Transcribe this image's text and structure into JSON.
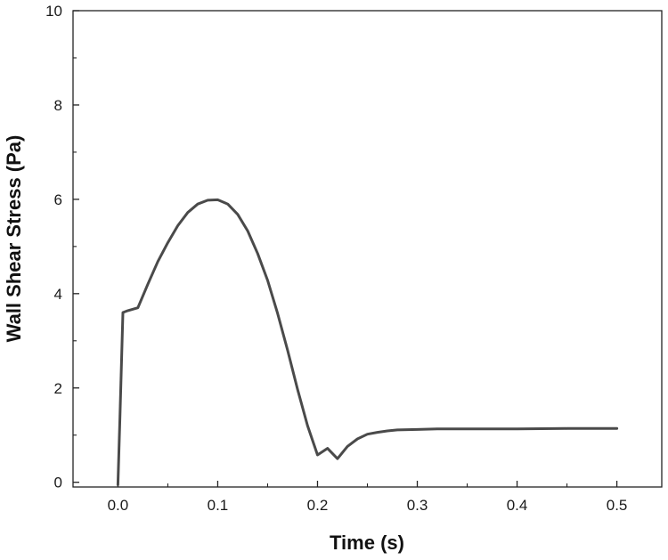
{
  "chart_data": {
    "type": "line",
    "title": "",
    "xlabel": "Time (s)",
    "ylabel": "Wall Shear Stress (Pa)",
    "xlim": [
      -0.045,
      0.545
    ],
    "ylim": [
      -0.1,
      10
    ],
    "xticks": [
      0.0,
      0.1,
      0.2,
      0.3,
      0.4,
      0.5
    ],
    "xtick_labels": [
      "0.0",
      "0.1",
      "0.2",
      "0.3",
      "0.4",
      "0.5"
    ],
    "yticks": [
      0,
      2,
      4,
      6,
      8,
      10
    ],
    "ytick_labels": [
      "0",
      "2",
      "4",
      "6",
      "8",
      "10"
    ],
    "grid": false,
    "legend": "none",
    "line_color": "#4a4a4a",
    "series": [
      {
        "x": [
          0.0,
          0.002,
          0.005,
          0.01,
          0.02,
          0.03,
          0.04,
          0.05,
          0.06,
          0.07,
          0.08,
          0.09,
          0.1,
          0.11,
          0.12,
          0.13,
          0.14,
          0.15,
          0.16,
          0.17,
          0.18,
          0.19,
          0.2,
          0.21,
          0.22,
          0.23,
          0.24,
          0.25,
          0.26,
          0.27,
          0.28,
          0.3,
          0.32,
          0.35,
          0.4,
          0.45,
          0.5
        ],
        "y": [
          -0.05,
          1.4,
          3.6,
          3.64,
          3.7,
          4.2,
          4.68,
          5.08,
          5.44,
          5.72,
          5.9,
          5.98,
          5.99,
          5.9,
          5.68,
          5.33,
          4.85,
          4.28,
          3.58,
          2.8,
          1.97,
          1.2,
          0.58,
          0.72,
          0.5,
          0.76,
          0.92,
          1.02,
          1.06,
          1.09,
          1.11,
          1.12,
          1.13,
          1.13,
          1.13,
          1.14,
          1.14
        ]
      }
    ]
  }
}
